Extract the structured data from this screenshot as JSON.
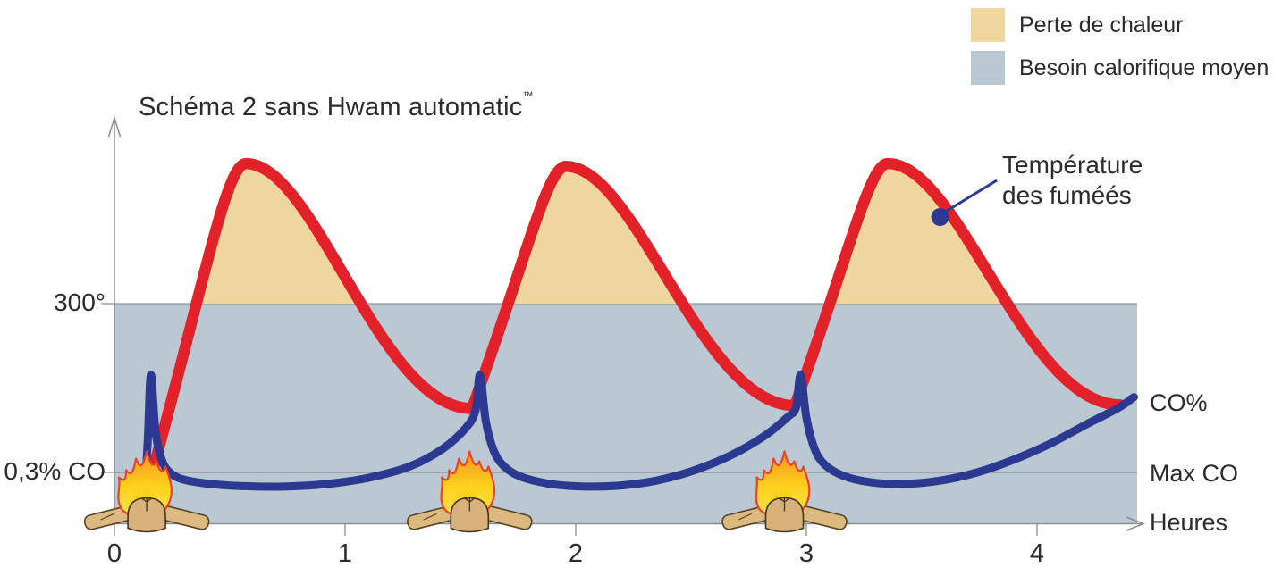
{
  "title": {
    "text": "Schéma 2 sans Hwam automatic",
    "trademark": "™"
  },
  "legend": {
    "items": [
      {
        "label": "Perte de chaleur",
        "color": "#EFD69E"
      },
      {
        "label": "Besoin calorifique moyen",
        "color": "#B9C8D2"
      }
    ]
  },
  "annotation": {
    "line1": "Température",
    "line2": "des fuméés"
  },
  "colors": {
    "temperature_curve": "#E32128",
    "co_curve": "#2B3990",
    "heat_loss_fill": "#EFD69E",
    "heat_need_band": "#B9C8D2",
    "gridline": "#98A2AA",
    "axis": "#8A8F93",
    "text": "#2B2B2B",
    "flame_outer": "#F7941E",
    "flame_edge": "#E9442A",
    "flame_inner": "#FFD21F",
    "flame_base": "#FFE14D",
    "log_fill": "#DCB97E",
    "log_outline": "#564327"
  },
  "chart_data": {
    "type": "line",
    "title": "Schéma 2 sans Hwam automatic™",
    "xlabel": "Heures",
    "x_ticks": [
      0,
      1,
      2,
      3,
      4
    ],
    "x_max": 4.43,
    "y_gridlines": [
      {
        "label": "300°",
        "series": "temperature",
        "value": 300
      },
      {
        "label": "0,3% CO",
        "series": "co",
        "value": 0.3
      }
    ],
    "right_labels": [
      "CO%",
      "Max CO",
      "Heures"
    ],
    "refuel_times": [
      0.14,
      1.54,
      2.905
    ],
    "legend_position": "top-right",
    "areas": [
      {
        "name": "heat_loss",
        "label": "Perte de chaleur",
        "description": "area where smoke temperature exceeds 300°"
      },
      {
        "name": "avg_heat_need",
        "label": "Besoin calorifique moyen",
        "description": "band from 0 to 300°"
      }
    ],
    "series": [
      {
        "name": "Température des fuméés",
        "unit": "degrees",
        "style": "thick-red",
        "humps": [
          {
            "start": [
              0.115,
              14
            ],
            "peak": [
              0.57,
              491
            ],
            "end": [
              1.55,
              157
            ]
          },
          {
            "start": [
              1.55,
              157
            ],
            "peak": [
              1.957,
              487
            ],
            "end": [
              2.95,
              161
            ]
          },
          {
            "start": [
              2.95,
              161
            ],
            "peak": [
              3.353,
              491
            ],
            "end": [
              4.36,
              162
            ]
          }
        ]
      },
      {
        "name": "CO%",
        "unit": "percent",
        "style": "thick-blue",
        "points": [
          [
            0.118,
            0.06
          ],
          [
            0.132,
            0.22
          ],
          [
            0.145,
            0.5
          ],
          [
            0.158,
            0.87
          ],
          [
            0.178,
            0.54
          ],
          [
            0.205,
            0.375
          ],
          [
            0.24,
            0.3
          ],
          [
            0.3,
            0.258
          ],
          [
            0.42,
            0.232
          ],
          [
            0.58,
            0.219
          ],
          [
            0.75,
            0.218
          ],
          [
            0.92,
            0.232
          ],
          [
            1.1,
            0.268
          ],
          [
            1.28,
            0.335
          ],
          [
            1.42,
            0.435
          ],
          [
            1.52,
            0.555
          ],
          [
            1.565,
            0.66
          ],
          [
            1.585,
            0.87
          ],
          [
            1.61,
            0.6
          ],
          [
            1.645,
            0.425
          ],
          [
            1.69,
            0.335
          ],
          [
            1.76,
            0.276
          ],
          [
            1.88,
            0.235
          ],
          [
            2.02,
            0.218
          ],
          [
            2.18,
            0.222
          ],
          [
            2.35,
            0.252
          ],
          [
            2.52,
            0.315
          ],
          [
            2.68,
            0.405
          ],
          [
            2.82,
            0.515
          ],
          [
            2.92,
            0.625
          ],
          [
            2.955,
            0.68
          ],
          [
            2.975,
            0.87
          ],
          [
            3.0,
            0.62
          ],
          [
            3.035,
            0.44
          ],
          [
            3.08,
            0.345
          ],
          [
            3.16,
            0.28
          ],
          [
            3.28,
            0.242
          ],
          [
            3.42,
            0.232
          ],
          [
            3.58,
            0.252
          ],
          [
            3.74,
            0.3
          ],
          [
            3.9,
            0.375
          ],
          [
            4.06,
            0.47
          ],
          [
            4.22,
            0.585
          ],
          [
            4.35,
            0.675
          ],
          [
            4.42,
            0.74
          ]
        ]
      }
    ],
    "annotations": [
      {
        "text": "Température des fuméés",
        "target_series": "Température des fuméés",
        "target_t": 3.58,
        "target_value": 418
      }
    ]
  }
}
